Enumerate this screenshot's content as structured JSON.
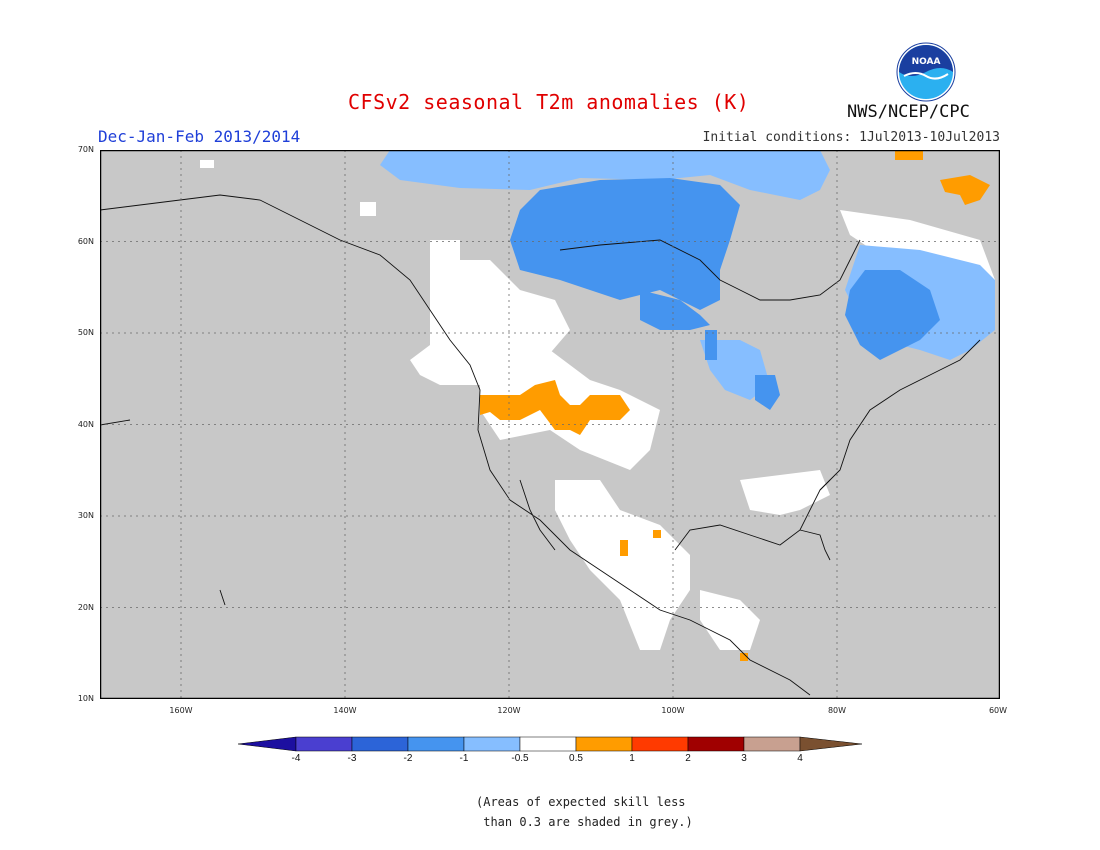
{
  "title": "CFSv2 seasonal T2m anomalies (K)",
  "season": "Dec-Jan-Feb 2013/2014",
  "initial_conditions": "Initial conditions: 1Jul2013-10Jul2013",
  "agency": "NWS/NCEP/CPC",
  "logo_text": "NOAA",
  "lat_labels": [
    "70N",
    "60N",
    "50N",
    "40N",
    "30N",
    "20N",
    "10N"
  ],
  "lon_labels": [
    "160W",
    "140W",
    "120W",
    "100W",
    "80W",
    "60W"
  ],
  "colorbar": {
    "labels": [
      "-4",
      "-3",
      "-2",
      "-1",
      "-0.5",
      "0.5",
      "1",
      "2",
      "3",
      "4"
    ],
    "colors": [
      "#1c0fa0",
      "#4a3fd0",
      "#2c64d8",
      "#4594ef",
      "#86beff",
      "#ffffff",
      "#ff9c00",
      "#ff3a00",
      "#a00000",
      "#c8a090",
      "#7a5030"
    ]
  },
  "note": "(Areas of expected skill less\n than 0.3 are shaded in grey.)",
  "colors": {
    "grey": "#c8c8c8",
    "title": "#e00000",
    "season": "#1f3fd8"
  }
}
